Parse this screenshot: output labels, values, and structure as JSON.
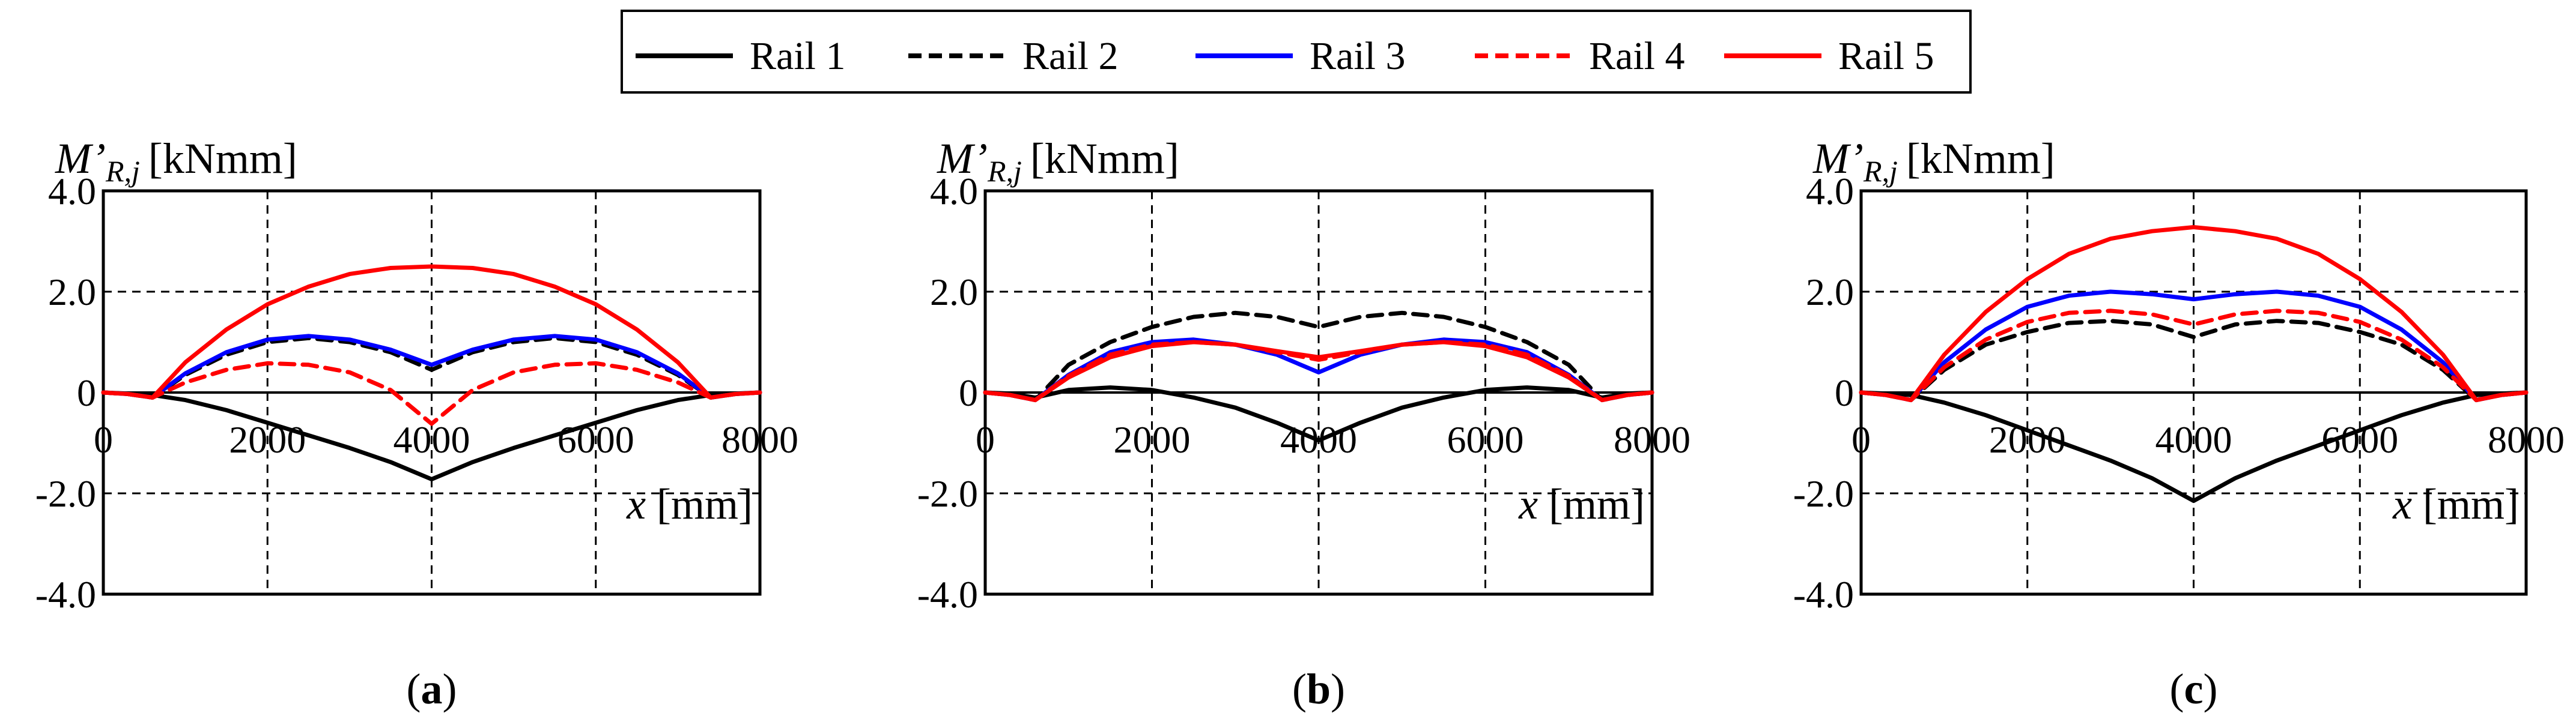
{
  "figure": {
    "legend": [
      {
        "label": "Rail 1",
        "color": "#000000",
        "dash": "solid"
      },
      {
        "label": "Rail 2",
        "color": "#000000",
        "dash": "dashed"
      },
      {
        "label": "Rail 3",
        "color": "#0000ff",
        "dash": "solid"
      },
      {
        "label": "Rail 4",
        "color": "#ff0000",
        "dash": "dashed"
      },
      {
        "label": "Rail 5",
        "color": "#ff0000",
        "dash": "solid"
      }
    ]
  },
  "chart_data": [
    {
      "type": "line",
      "panel_label": "a",
      "ylabel_main": "M’",
      "ylabel_sub": "R,j",
      "ylabel_unit": "[kNmm]",
      "xlabel": "x",
      "xlabel_unit": "[mm]",
      "xlim": [
        0,
        8000
      ],
      "ylim": [
        -4,
        4
      ],
      "xticks": [
        0,
        2000,
        4000,
        6000,
        8000
      ],
      "xtick_labels": [
        "0",
        "2000",
        "4000",
        "6000",
        "8000"
      ],
      "yticks": [
        -4,
        -2,
        0,
        2,
        4
      ],
      "ytick_labels": [
        "-4.0",
        "-2.0",
        "0",
        "2.0",
        "4.0"
      ],
      "grid": true,
      "x": [
        0,
        300,
        600,
        1000,
        1500,
        2000,
        2500,
        3000,
        3500,
        4000,
        4500,
        5000,
        5500,
        6000,
        6500,
        7000,
        7400,
        7700,
        8000
      ],
      "series": [
        {
          "name": "Rail 1",
          "values": [
            0,
            -0.02,
            -0.05,
            -0.15,
            -0.35,
            -0.6,
            -0.85,
            -1.1,
            -1.38,
            -1.72,
            -1.38,
            -1.1,
            -0.85,
            -0.6,
            -0.35,
            -0.15,
            -0.05,
            -0.02,
            0
          ]
        },
        {
          "name": "Rail 2",
          "values": [
            0,
            -0.03,
            -0.1,
            0.35,
            0.75,
            1.0,
            1.08,
            1.0,
            0.8,
            0.45,
            0.8,
            1.0,
            1.08,
            1.0,
            0.75,
            0.35,
            -0.1,
            -0.03,
            0
          ]
        },
        {
          "name": "Rail 3",
          "values": [
            0,
            -0.03,
            -0.1,
            0.38,
            0.8,
            1.05,
            1.12,
            1.05,
            0.85,
            0.55,
            0.85,
            1.05,
            1.12,
            1.05,
            0.8,
            0.38,
            -0.1,
            -0.03,
            0
          ]
        },
        {
          "name": "Rail 4",
          "values": [
            0,
            -0.03,
            -0.1,
            0.2,
            0.45,
            0.58,
            0.55,
            0.4,
            0.05,
            -0.62,
            0.05,
            0.4,
            0.55,
            0.58,
            0.45,
            0.2,
            -0.1,
            -0.03,
            0
          ]
        },
        {
          "name": "Rail 5",
          "values": [
            0,
            -0.03,
            -0.1,
            0.6,
            1.25,
            1.75,
            2.1,
            2.35,
            2.47,
            2.5,
            2.47,
            2.35,
            2.1,
            1.75,
            1.25,
            0.6,
            -0.1,
            -0.03,
            0
          ]
        }
      ]
    },
    {
      "type": "line",
      "panel_label": "b",
      "ylabel_main": "M’",
      "ylabel_sub": "R,j",
      "ylabel_unit": "[kNmm]",
      "xlabel": "x",
      "xlabel_unit": "[mm]",
      "xlim": [
        0,
        8000
      ],
      "ylim": [
        -4,
        4
      ],
      "xticks": [
        0,
        2000,
        4000,
        6000,
        8000
      ],
      "xtick_labels": [
        "0",
        "2000",
        "4000",
        "6000",
        "8000"
      ],
      "yticks": [
        -4,
        -2,
        0,
        2,
        4
      ],
      "ytick_labels": [
        "-4.0",
        "-2.0",
        "0",
        "2.0",
        "4.0"
      ],
      "grid": true,
      "x": [
        0,
        300,
        600,
        1000,
        1500,
        2000,
        2500,
        3000,
        3500,
        4000,
        4500,
        5000,
        5500,
        6000,
        6500,
        7000,
        7400,
        7700,
        8000
      ],
      "series": [
        {
          "name": "Rail 1",
          "values": [
            0,
            -0.02,
            -0.1,
            0.05,
            0.1,
            0.05,
            -0.1,
            -0.3,
            -0.6,
            -0.95,
            -0.6,
            -0.3,
            -0.1,
            0.05,
            0.1,
            0.05,
            -0.1,
            -0.02,
            0
          ]
        },
        {
          "name": "Rail 2",
          "values": [
            0,
            -0.05,
            -0.15,
            0.55,
            1.0,
            1.3,
            1.5,
            1.58,
            1.5,
            1.3,
            1.5,
            1.58,
            1.5,
            1.3,
            1.0,
            0.55,
            -0.15,
            -0.05,
            0
          ]
        },
        {
          "name": "Rail 3",
          "values": [
            0,
            -0.05,
            -0.15,
            0.35,
            0.8,
            1.0,
            1.05,
            0.95,
            0.75,
            0.4,
            0.75,
            0.95,
            1.05,
            1.0,
            0.8,
            0.35,
            -0.15,
            -0.05,
            0
          ]
        },
        {
          "name": "Rail 4",
          "values": [
            0,
            -0.05,
            -0.15,
            0.33,
            0.75,
            0.95,
            1.0,
            0.95,
            0.8,
            0.65,
            0.8,
            0.95,
            1.0,
            0.95,
            0.75,
            0.33,
            -0.15,
            -0.05,
            0
          ]
        },
        {
          "name": "Rail 5",
          "values": [
            0,
            -0.05,
            -0.15,
            0.3,
            0.7,
            0.92,
            1.0,
            0.95,
            0.82,
            0.7,
            0.82,
            0.95,
            1.0,
            0.92,
            0.7,
            0.3,
            -0.15,
            -0.05,
            0
          ]
        }
      ]
    },
    {
      "type": "line",
      "panel_label": "c",
      "ylabel_main": "M’",
      "ylabel_sub": "R,j",
      "ylabel_unit": "[kNmm]",
      "xlabel": "x",
      "xlabel_unit": "[mm]",
      "xlim": [
        0,
        8000
      ],
      "ylim": [
        -4,
        4
      ],
      "xticks": [
        0,
        2000,
        4000,
        6000,
        8000
      ],
      "xtick_labels": [
        "0",
        "2000",
        "4000",
        "6000",
        "8000"
      ],
      "yticks": [
        -4,
        -2,
        0,
        2,
        4
      ],
      "ytick_labels": [
        "-4.0",
        "-2.0",
        "0",
        "2.0",
        "4.0"
      ],
      "grid": true,
      "x": [
        0,
        300,
        600,
        1000,
        1500,
        2000,
        2500,
        3000,
        3500,
        4000,
        4500,
        5000,
        5500,
        6000,
        6500,
        7000,
        7400,
        7700,
        8000
      ],
      "series": [
        {
          "name": "Rail 1",
          "values": [
            0,
            -0.02,
            -0.05,
            -0.2,
            -0.45,
            -0.75,
            -1.05,
            -1.35,
            -1.7,
            -2.15,
            -1.7,
            -1.35,
            -1.05,
            -0.75,
            -0.45,
            -0.2,
            -0.05,
            -0.02,
            0
          ]
        },
        {
          "name": "Rail 2",
          "values": [
            0,
            -0.05,
            -0.15,
            0.45,
            0.95,
            1.2,
            1.38,
            1.42,
            1.35,
            1.1,
            1.35,
            1.42,
            1.38,
            1.2,
            0.95,
            0.45,
            -0.15,
            -0.05,
            0
          ]
        },
        {
          "name": "Rail 3",
          "values": [
            0,
            -0.05,
            -0.15,
            0.6,
            1.25,
            1.7,
            1.92,
            2.0,
            1.95,
            1.85,
            1.95,
            2.0,
            1.92,
            1.7,
            1.25,
            0.6,
            -0.15,
            -0.05,
            0
          ]
        },
        {
          "name": "Rail 4",
          "values": [
            0,
            -0.05,
            -0.15,
            0.5,
            1.05,
            1.4,
            1.58,
            1.62,
            1.55,
            1.35,
            1.55,
            1.62,
            1.58,
            1.4,
            1.05,
            0.5,
            -0.15,
            -0.05,
            0
          ]
        },
        {
          "name": "Rail 5",
          "values": [
            0,
            -0.05,
            -0.15,
            0.75,
            1.6,
            2.25,
            2.75,
            3.05,
            3.2,
            3.28,
            3.2,
            3.05,
            2.75,
            2.25,
            1.6,
            0.75,
            -0.15,
            -0.05,
            0
          ]
        }
      ]
    }
  ]
}
